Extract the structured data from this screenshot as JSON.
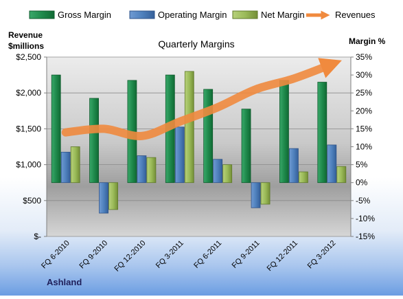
{
  "chart_data": {
    "type": "bar",
    "title": "Quarterly Margins",
    "company": "Ashland",
    "y_left_label_line1": "Revenue",
    "y_left_label_line2": "$millions",
    "y_right_label": "Margin %",
    "categories": [
      "FQ 6-2010",
      "FQ 9-2010",
      "FQ 12-2010",
      "FQ 3-2011",
      "FQ 6-2011",
      "FQ 9-2011",
      "FQ 12-2011",
      "FQ 3-2012"
    ],
    "left_axis": {
      "range": [
        0,
        2500
      ],
      "ticks": [
        0,
        500,
        1000,
        1500,
        2000,
        2500
      ],
      "tick_labels": [
        "$-",
        "$500",
        "$1,000",
        "$1,500",
        "$2,000",
        "$2,500"
      ]
    },
    "right_axis": {
      "range": [
        -15,
        35
      ],
      "ticks": [
        -15,
        -10,
        -5,
        0,
        5,
        10,
        15,
        20,
        25,
        30,
        35
      ],
      "tick_labels": [
        "-15%",
        "-10%",
        "-5%",
        "0%",
        "5%",
        "10%",
        "15%",
        "20%",
        "25%",
        "30%",
        "35%"
      ]
    },
    "series": [
      {
        "name": "Gross Margin",
        "axis": "right",
        "kind": "bar",
        "color": "#1f8a4c",
        "values": [
          30,
          23.5,
          28.5,
          30,
          26,
          20.5,
          28.5,
          28
        ]
      },
      {
        "name": "Operating Margin",
        "axis": "right",
        "kind": "bar",
        "color": "#4f81bd",
        "values": [
          8.5,
          -8.5,
          7.5,
          15.5,
          6.5,
          -7,
          9.5,
          10.5
        ]
      },
      {
        "name": "Net Margin",
        "axis": "right",
        "kind": "bar",
        "color": "#9bbb59",
        "values": [
          10,
          -7.5,
          7,
          31,
          5,
          -6,
          3,
          4.5
        ]
      },
      {
        "name": "Revenues",
        "axis": "left",
        "kind": "line",
        "color": "#f79646",
        "values": [
          1450,
          1500,
          1400,
          1600,
          1800,
          2050,
          2200,
          2400
        ]
      }
    ],
    "legend_position": "top",
    "grid": true
  }
}
